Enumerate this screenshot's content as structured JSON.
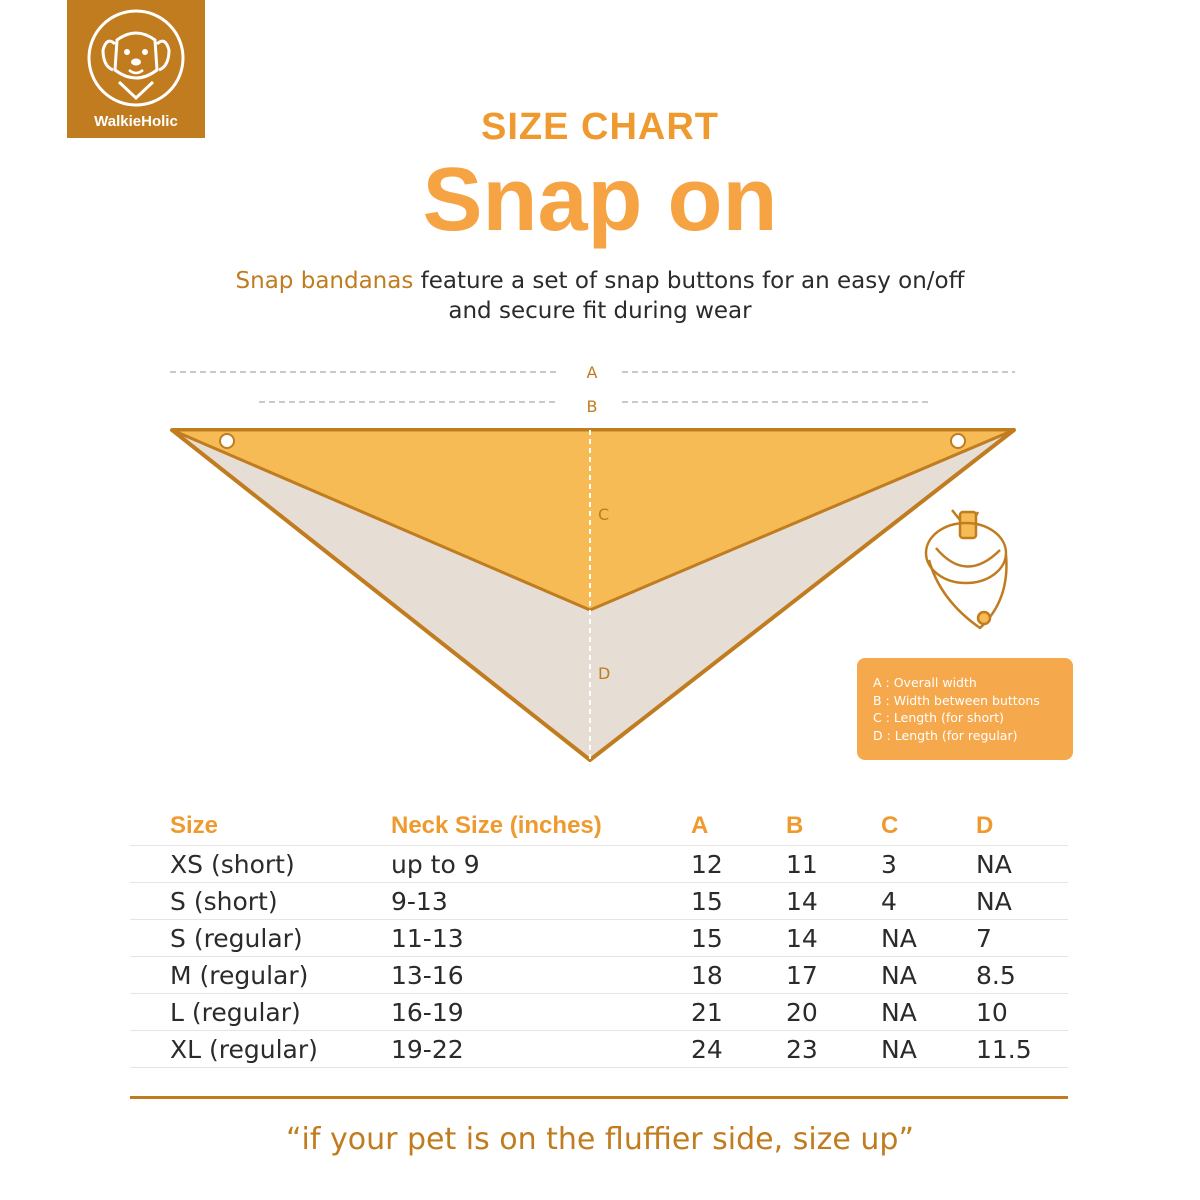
{
  "brand": {
    "name": "WalkieHolic"
  },
  "header": {
    "eyebrow": "SIZE CHART",
    "title": "Snap on",
    "subtitle_highlight": "Snap bandanas",
    "subtitle_rest_line1": " feature a set of snap buttons for an easy on/off",
    "subtitle_line2": "and secure fit during wear"
  },
  "diagram": {
    "labels": {
      "a": "A",
      "b": "B",
      "c": "C",
      "d": "D"
    },
    "colors": {
      "top_panel": "#f6bb55",
      "bottom_panel": "#e6ddd4",
      "outline": "#c07c1f"
    }
  },
  "legend": {
    "items": [
      "A : Overall width",
      "B : Width between buttons",
      "C : Length (for short)",
      "D : Length (for regular)"
    ]
  },
  "table": {
    "headers": [
      "Size",
      "Neck Size (inches)",
      "A",
      "B",
      "C",
      "D"
    ],
    "rows": [
      [
        "XS (short)",
        "up to 9",
        "12",
        "11",
        "3",
        "NA"
      ],
      [
        "S (short)",
        "9-13",
        "15",
        "14",
        "4",
        "NA"
      ],
      [
        "S (regular)",
        "11-13",
        "15",
        "14",
        "NA",
        "7"
      ],
      [
        "M (regular)",
        "13-16",
        "18",
        "17",
        "NA",
        "8.5"
      ],
      [
        "L (regular)",
        "16-19",
        "21",
        "20",
        "NA",
        "10"
      ],
      [
        "XL (regular)",
        "19-22",
        "24",
        "23",
        "NA",
        "11.5"
      ]
    ]
  },
  "footer": {
    "quote": "“if your pet is on the fluffier side, size up”"
  },
  "colors": {
    "brand": "#c07c1f",
    "accent": "#f6a443"
  }
}
